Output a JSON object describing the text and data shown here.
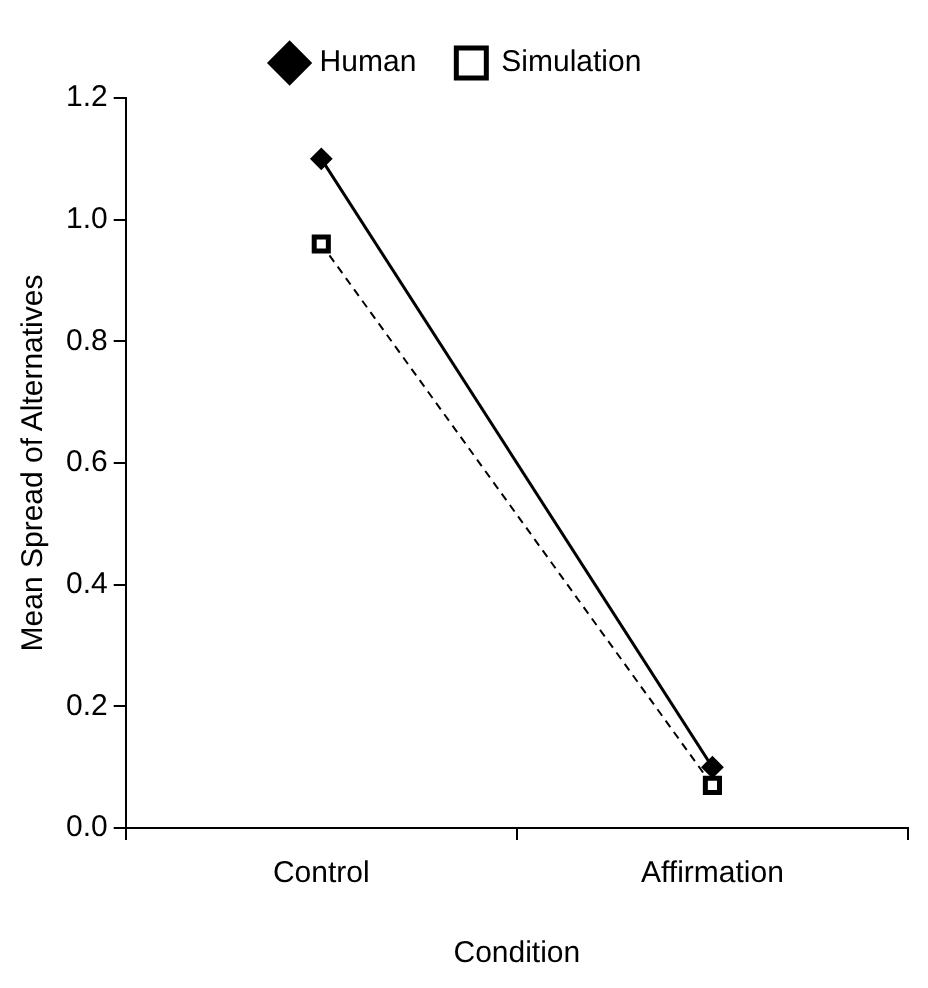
{
  "chart_data": {
    "type": "line",
    "xlabel": "Condition",
    "ylabel": "Mean Spread of Alternatives",
    "categories": [
      "Control",
      "Affirmation"
    ],
    "series": [
      {
        "name": "Human",
        "color": "#000000",
        "values": [
          1.1,
          0.1
        ],
        "marker": "diamond",
        "line_style": "solid"
      },
      {
        "name": "Simulation",
        "color": "#000000",
        "values": [
          0.96,
          0.07
        ],
        "marker": "square",
        "line_style": "dashed"
      }
    ],
    "ylim": [
      0,
      1.2
    ],
    "yticks": [
      {
        "value": 0,
        "label": "0.0"
      },
      {
        "value": 0.2,
        "label": "0.2"
      },
      {
        "value": 0.4,
        "label": "0.4"
      },
      {
        "value": 0.6,
        "label": "0.6"
      },
      {
        "value": 0.8,
        "label": "0.8"
      },
      {
        "value": 1,
        "label": "1.0"
      },
      {
        "value": 1.2,
        "label": "1.2"
      }
    ],
    "grid": false,
    "legend": "top"
  }
}
